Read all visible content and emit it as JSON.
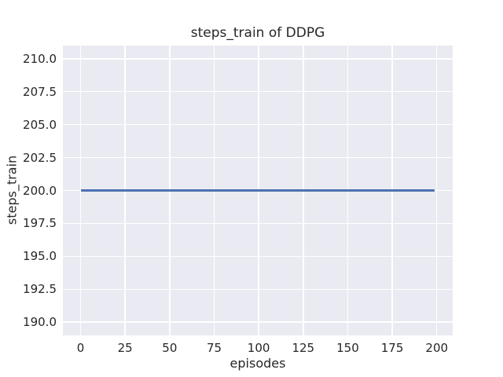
{
  "colors": {
    "figure_background": "#ffffff",
    "axes_background": "#eaeaf2",
    "grid": "#ffffff",
    "line": "#4c72b0",
    "text": "#262626"
  },
  "chart_data": {
    "type": "line",
    "title": "steps_train of DDPG",
    "xlabel": "episodes",
    "ylabel": "steps_train",
    "grid": true,
    "legend": "none",
    "xlim": [
      -9.95,
      208.95
    ],
    "ylim": [
      189.0,
      211.0
    ],
    "x_ticks": [
      0,
      25,
      50,
      75,
      100,
      125,
      150,
      175,
      200
    ],
    "x_tick_labels": [
      "0",
      "25",
      "50",
      "75",
      "100",
      "125",
      "150",
      "175",
      "200"
    ],
    "y_ticks": [
      190.0,
      192.5,
      195.0,
      197.5,
      200.0,
      202.5,
      205.0,
      207.5,
      210.0
    ],
    "y_tick_labels": [
      "190.0",
      "192.5",
      "195.0",
      "197.5",
      "200.0",
      "202.5",
      "205.0",
      "207.5",
      "210.0"
    ],
    "series": [
      {
        "name": "steps_train",
        "color": "#4c72b0",
        "x": [
          0,
          199
        ],
        "y": [
          200,
          200
        ]
      }
    ]
  }
}
